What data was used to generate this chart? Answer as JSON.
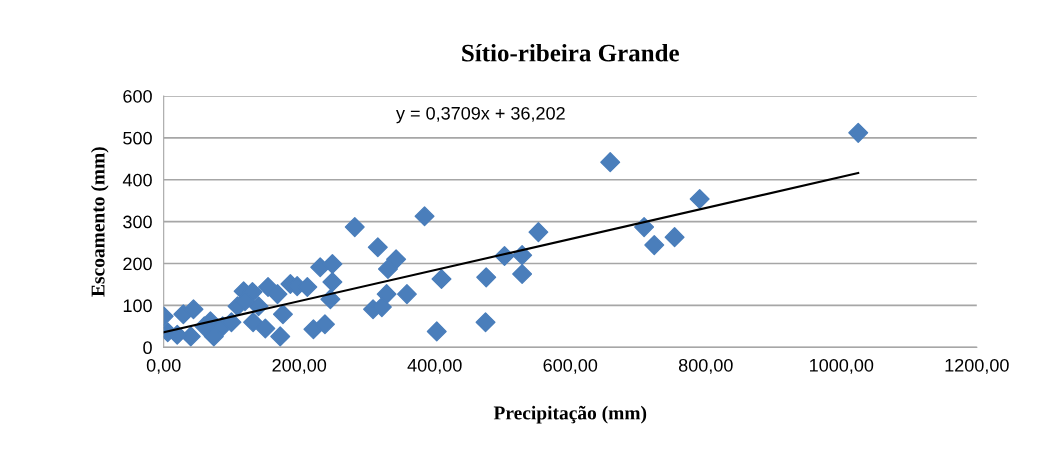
{
  "chart_data": {
    "type": "scatter",
    "title": "Sítio-ribeira Grande",
    "xlabel": "Precipitação (mm)",
    "ylabel": "Escoamento (mm)",
    "xlim": [
      0,
      1200
    ],
    "xticks": [
      {
        "value": 0,
        "label": "0,00"
      },
      {
        "value": 200,
        "label": "200,00"
      },
      {
        "value": 400,
        "label": "400,00"
      },
      {
        "value": 600,
        "label": "600,00"
      },
      {
        "value": 800,
        "label": "800,00"
      },
      {
        "value": 1000,
        "label": "1000,00"
      },
      {
        "value": 1200,
        "label": "1200,00"
      }
    ],
    "ylim": [
      0,
      600
    ],
    "yticks": [
      0,
      100,
      200,
      300,
      400,
      500,
      600
    ],
    "grid": "y",
    "legend": false,
    "annotations": [
      "y = 0,3709x + 36,202"
    ],
    "series": [
      {
        "marker": "diamond",
        "color": "#4a7ebb",
        "x": [
          0,
          6,
          29,
          44,
          40,
          69,
          74,
          87,
          109,
          118,
          131,
          140,
          132,
          154,
          168,
          176,
          172,
          187,
          197,
          212,
          221,
          238,
          231,
          249,
          249,
          246,
          20,
          60,
          100,
          120,
          150,
          282,
          316,
          343,
          331,
          329,
          309,
          322,
          359,
          385,
          410,
          403,
          476,
          475,
          503,
          529,
          529,
          553,
          659,
          709,
          724,
          754,
          791,
          1025
        ],
        "values": [
          74,
          36,
          79,
          91,
          26,
          62,
          26,
          50,
          98,
          134,
          132,
          98,
          60,
          144,
          127,
          79,
          26,
          151,
          146,
          144,
          43,
          55,
          191,
          199,
          156,
          115,
          30,
          50,
          60,
          110,
          45,
          287,
          239,
          210,
          187,
          127,
          91,
          96,
          127,
          313,
          163,
          38,
          167,
          60,
          218,
          220,
          175,
          275,
          442,
          287,
          244,
          263,
          354,
          512
        ]
      },
      {
        "type": "line",
        "marker": "none",
        "line_style": "solid",
        "color": "#000000",
        "x": [
          0,
          1025
        ],
        "values": [
          36,
          416
        ]
      }
    ]
  }
}
